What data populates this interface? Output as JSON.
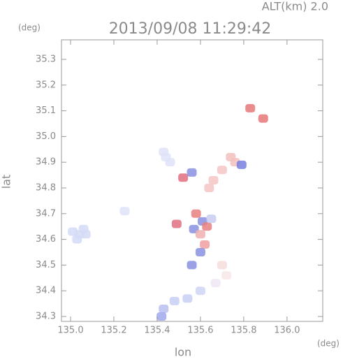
{
  "chart_data": {
    "type": "scatter",
    "title": "2013/09/08 11:29:42",
    "subtitle": "ALT(km) 2.0",
    "x_label": "lon",
    "y_label": "lat",
    "x_unit": "(deg)",
    "y_unit": "(deg)",
    "xlim": [
      134.958,
      136.165
    ],
    "ylim": [
      34.281,
      35.376
    ],
    "xticks": [
      {
        "value": 135,
        "label": "135.0"
      },
      135.2,
      135.4,
      135.6,
      135.8,
      {
        "value": 136,
        "label": "136.0"
      }
    ],
    "yticks": [
      34.3,
      34.4,
      34.5,
      34.6,
      34.7,
      34.8,
      34.9,
      {
        "value": 35,
        "label": "35.0"
      },
      35.1,
      35.2,
      35.3
    ],
    "x": [
      135.01,
      135.04,
      135.07,
      135.03,
      135.06,
      135.25,
      135.44,
      135.46,
      135.43,
      135.52,
      135.56,
      135.66,
      135.64,
      135.7,
      135.74,
      135.76,
      135.79,
      135.83,
      135.89,
      135.58,
      135.61,
      135.63,
      135.57,
      135.6,
      135.65,
      135.62,
      135.6,
      135.7,
      135.72,
      135.67,
      135.6,
      135.54,
      135.48,
      135.43,
      135.42,
      135.56,
      135.49
    ],
    "values": [
      34.63,
      34.62,
      34.62,
      34.6,
      34.64,
      34.71,
      34.92,
      34.9,
      34.94,
      34.84,
      34.86,
      34.83,
      34.8,
      34.87,
      34.92,
      34.9,
      34.89,
      35.11,
      35.07,
      34.7,
      34.67,
      34.65,
      34.64,
      34.62,
      34.68,
      34.58,
      34.55,
      34.5,
      34.46,
      34.43,
      34.4,
      34.37,
      34.36,
      34.33,
      34.3,
      34.5,
      34.66
    ],
    "colors": [
      "#d4daf6",
      "#d4daf6",
      "#d4daf6",
      "#d4daf6",
      "#d4daf6",
      "#dfe3f8",
      "#dfe3f8",
      "#dfe3f8",
      "#dfe3f8",
      "#e07080",
      "#8890e0",
      "#f4c6c6",
      "#f4c6c6",
      "#f4c6c6",
      "#f4c0c0",
      "#f4c0c0",
      "#7880e0",
      "#e87878",
      "#e87878",
      "#e88080",
      "#8890e0",
      "#e88080",
      "#8890e0",
      "#f0b0b0",
      "#c8ccf0",
      "#f0a0a0",
      "#8890e0",
      "#f6dcdc",
      "#f8e8e8",
      "#f0e8f4",
      "#d0d6f4",
      "#c8d0f4",
      "#c8d0f4",
      "#b8c0f0",
      "#a0a8ec",
      "#8890e0",
      "#e07080"
    ],
    "frame_color": "#999999"
  }
}
